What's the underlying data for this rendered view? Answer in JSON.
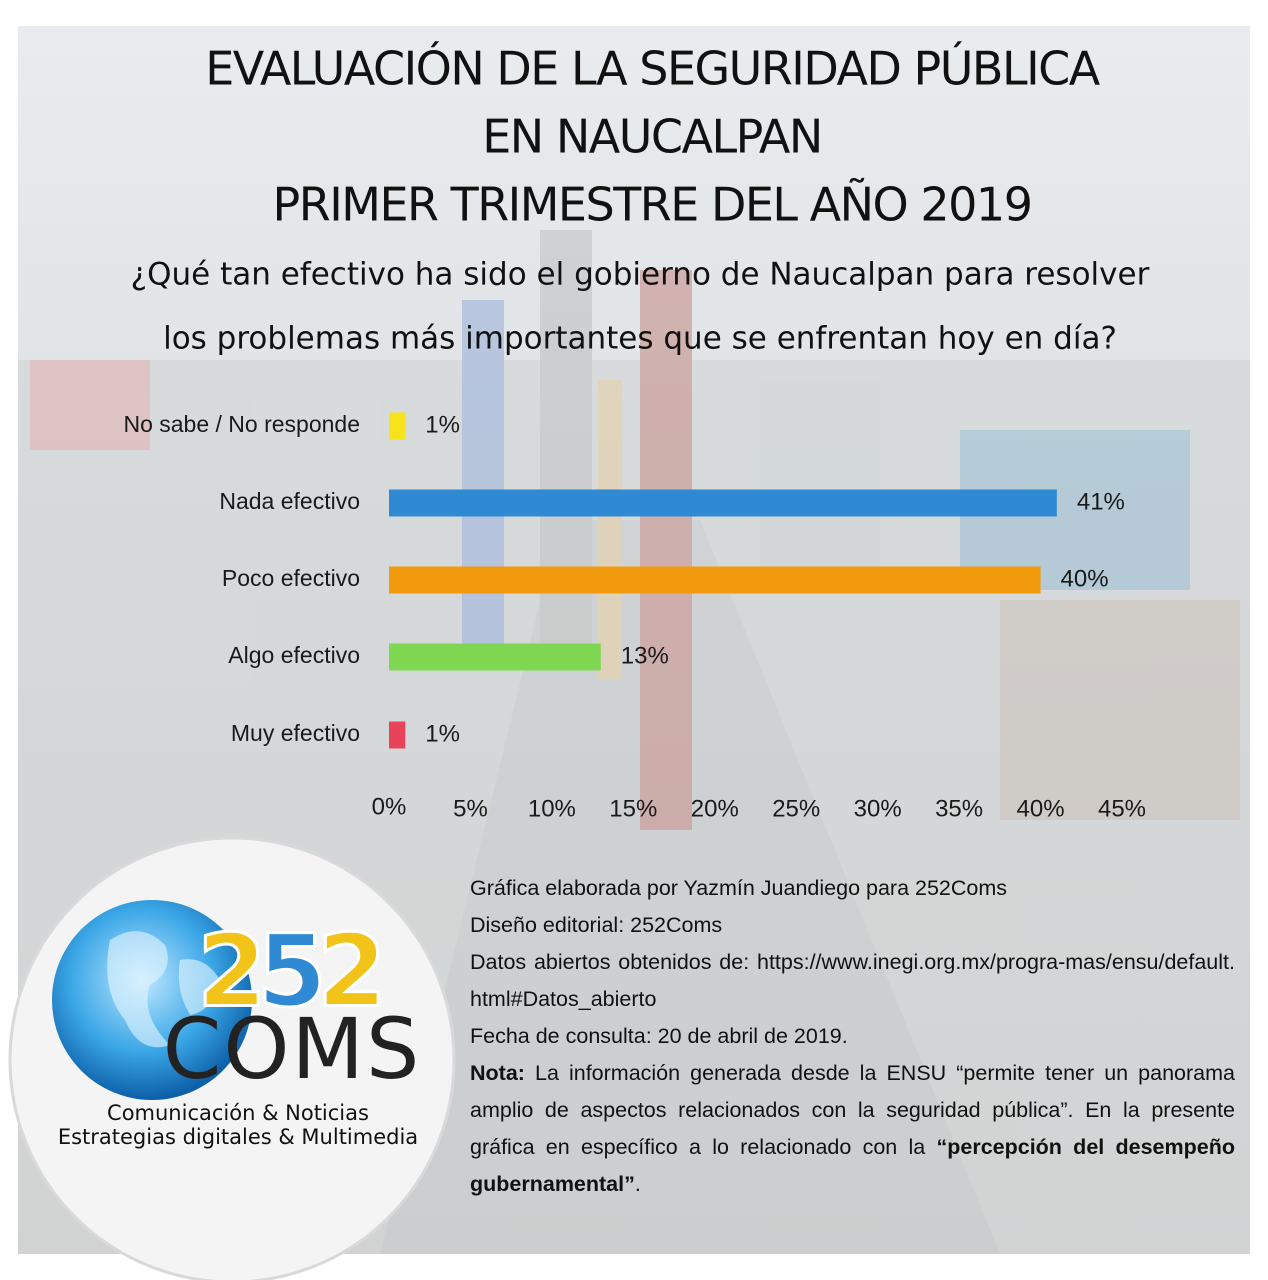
{
  "chart_data": {
    "type": "hbar",
    "title": [
      "EVALUACIÓN DE LA SEGURIDAD PÚBLICA",
      "EN NAUCALPAN",
      "PRIMER TRIMESTRE DEL AÑO 2019"
    ],
    "subtitle": [
      "¿Qué tan efectivo ha sido el gobierno de Naucalpan para resolver",
      "los problemas más importantes que se enfrentan hoy en día?"
    ],
    "categories": [
      "No sabe / No responde",
      "Nada efectivo",
      "Poco efectivo",
      "Algo efectivo",
      "Muy efectivo"
    ],
    "values": [
      1,
      41,
      40,
      13,
      1
    ],
    "value_labels": [
      "1%",
      "41%",
      "40%",
      "13%",
      "1%"
    ],
    "colors": [
      "#f7e21b",
      "#2f8ad3",
      "#f29a0e",
      "#7fd651",
      "#e8435b"
    ],
    "xlim": [
      0,
      45
    ],
    "xticks": [
      {
        "value": 0,
        "label": "0%"
      },
      {
        "value": 5,
        "label": "5%"
      },
      {
        "value": 10,
        "label": "10%"
      },
      {
        "value": 15,
        "label": "15%"
      },
      {
        "value": 20,
        "label": "20%"
      },
      {
        "value": 25,
        "label": "25%"
      },
      {
        "value": 30,
        "label": "30%"
      },
      {
        "value": 35,
        "label": "35%"
      },
      {
        "value": 40,
        "label": "40%"
      },
      {
        "value": 45,
        "label": "45%"
      }
    ],
    "grid": false
  },
  "logo": {
    "number": [
      "2",
      "5",
      "2"
    ],
    "name": "COMS",
    "tagline": [
      "Comunicación & Noticias",
      "Estrategias digitales & Multimedia"
    ]
  },
  "credits": {
    "lines": [
      "Gráfica elaborada por Yazmín Juandiego para 252Coms",
      "Diseño editorial: 252Coms",
      "Datos abiertos obtenidos de: https://www.inegi.org.mx/progra-mas/ensu/default.html#Datos_abierto",
      "Fecha de consulta: 20 de abril de 2019."
    ],
    "note": {
      "label": "Nota:",
      "text": "La información generada desde la ENSU “permite tener un panorama amplio de aspectos relacionados con la seguridad pública”. En la presente gráfica en específico a lo relacionado con la",
      "emphasis": "“percepción del desempeño gubernamental”",
      "end": "."
    }
  }
}
